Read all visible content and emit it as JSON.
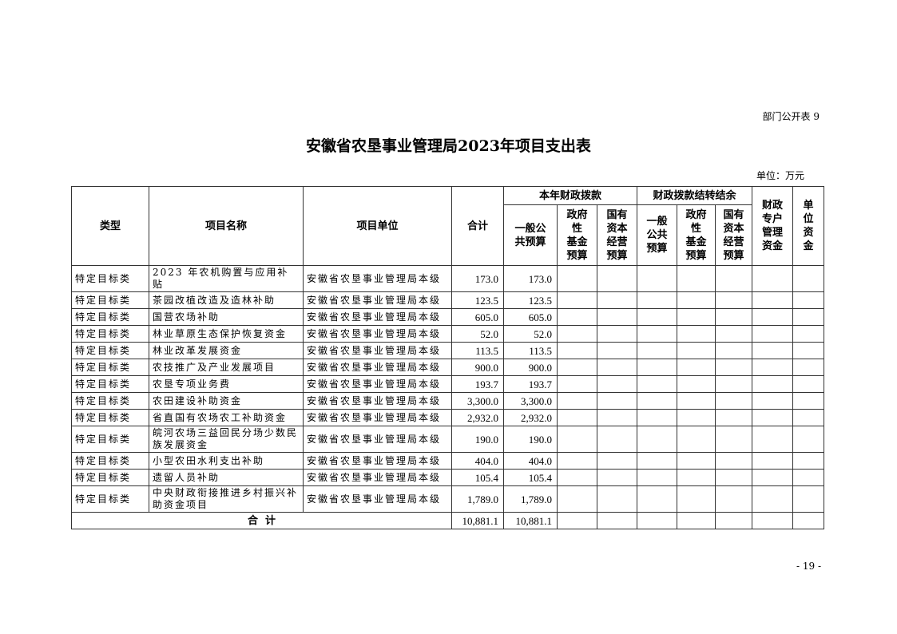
{
  "form_no": "部门公开表 9",
  "title": "安徽省农垦事业管理局2023年项目支出表",
  "unit": "单位：万元",
  "page_number": "- 19 -",
  "headers": {
    "type": "类型",
    "name": "项目名称",
    "unit": "项目单位",
    "total": "合计",
    "current_group": "本年财政拨款",
    "current_general": "一般公\n共预算",
    "current_gov_fund": "政府\n性\n基金\n预算",
    "current_state_capital": "国有\n资本\n经营\n预算",
    "carry_group": "财政拨款结转结余",
    "carry_general": "一般\n公共\n预算",
    "carry_gov_fund": "政府\n性\n基金\n预算",
    "carry_state_capital": "国有\n资本\n经营\n预算",
    "special_account": "财政\n专户\n管理\n资金",
    "unit_funds": "单\n位\n资\n金"
  },
  "rows": [
    {
      "type": "特定目标类",
      "name": "2023 年农机购置与应用补贴",
      "unit": "安徽省农垦事业管理局本级",
      "total": "173.0",
      "general": "173.0"
    },
    {
      "type": "特定目标类",
      "name": "茶园改植改造及造林补助",
      "unit": "安徽省农垦事业管理局本级",
      "total": "123.5",
      "general": "123.5"
    },
    {
      "type": "特定目标类",
      "name": "国营农场补助",
      "unit": "安徽省农垦事业管理局本级",
      "total": "605.0",
      "general": "605.0"
    },
    {
      "type": "特定目标类",
      "name": "林业草原生态保护恢复资金",
      "unit": "安徽省农垦事业管理局本级",
      "total": "52.0",
      "general": "52.0"
    },
    {
      "type": "特定目标类",
      "name": "林业改革发展资金",
      "unit": "安徽省农垦事业管理局本级",
      "total": "113.5",
      "general": "113.5"
    },
    {
      "type": "特定目标类",
      "name": "农技推广及产业发展项目",
      "unit": "安徽省农垦事业管理局本级",
      "total": "900.0",
      "general": "900.0"
    },
    {
      "type": "特定目标类",
      "name": "农垦专项业务费",
      "unit": "安徽省农垦事业管理局本级",
      "total": "193.7",
      "general": "193.7"
    },
    {
      "type": "特定目标类",
      "name": "农田建设补助资金",
      "unit": "安徽省农垦事业管理局本级",
      "total": "3,300.0",
      "general": "3,300.0"
    },
    {
      "type": "特定目标类",
      "name": "省直国有农场农工补助资金",
      "unit": "安徽省农垦事业管理局本级",
      "total": "2,932.0",
      "general": "2,932.0"
    },
    {
      "type": "特定目标类",
      "name": "皖河农场三益回民分场少数民族发展资金",
      "unit": "安徽省农垦事业管理局本级",
      "total": "190.0",
      "general": "190.0"
    },
    {
      "type": "特定目标类",
      "name": "小型农田水利支出补助",
      "unit": "安徽省农垦事业管理局本级",
      "total": "404.0",
      "general": "404.0"
    },
    {
      "type": "特定目标类",
      "name": "遗留人员补助",
      "unit": "安徽省农垦事业管理局本级",
      "total": "105.4",
      "general": "105.4"
    },
    {
      "type": "特定目标类",
      "name": "中央财政衔接推进乡村振兴补助资金项目",
      "unit": "安徽省农垦事业管理局本级",
      "total": "1,789.0",
      "general": "1,789.0"
    }
  ],
  "footer": {
    "label": "合  计",
    "total": "10,881.1",
    "general": "10,881.1"
  }
}
